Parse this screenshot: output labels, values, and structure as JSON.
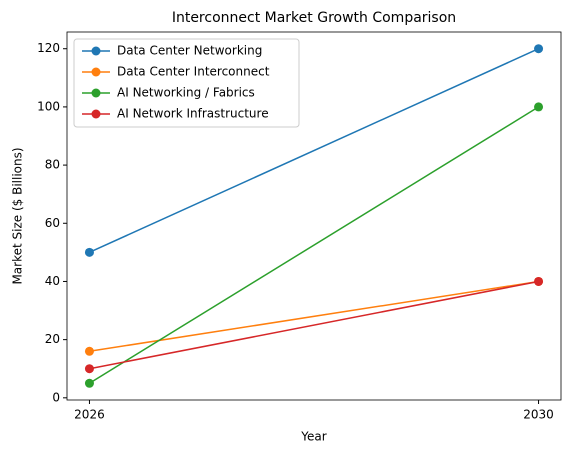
{
  "chart_data": {
    "type": "line",
    "title": "Interconnect Market Growth Comparison",
    "x_label": "Year",
    "y_label": "Market Size ($ Billions)",
    "x": [
      2026,
      2030
    ],
    "series": [
      {
        "name": "Data Center Networking",
        "color": "#1f77b4",
        "values": [
          50,
          120
        ]
      },
      {
        "name": "Data Center Interconnect",
        "color": "#ff7f0e",
        "values": [
          16,
          40
        ]
      },
      {
        "name": "AI Networking / Fabrics",
        "color": "#2ca02c",
        "values": [
          5,
          100
        ]
      },
      {
        "name": "AI Network Infrastructure",
        "color": "#d62728",
        "values": [
          10,
          40
        ]
      }
    ],
    "xlim": [
      2025.8,
      2030.2
    ],
    "xticks": [
      2026,
      2030
    ],
    "ylim": [
      -0.75,
      125.75
    ],
    "yticks": [
      0,
      20,
      40,
      60,
      80,
      100,
      120
    ],
    "legend": "upper left",
    "grid": false
  }
}
